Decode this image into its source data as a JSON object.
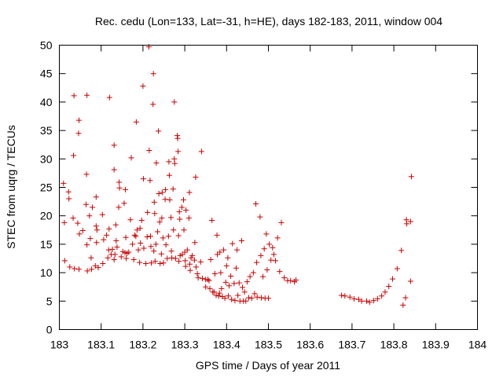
{
  "chart_data": {
    "type": "scatter",
    "title": "Rec. cedu (Lon=133, Lat=-31, h=HE), days 182-183, 2011, window 004",
    "xlabel": "GPS time / Days of year 2011",
    "ylabel": "STEC from uqrg / TECUs",
    "xlim": [
      183,
      184
    ],
    "ylim": [
      0,
      50
    ],
    "xticks": [
      183,
      183.1,
      183.2,
      183.3,
      183.4,
      183.5,
      183.6,
      183.7,
      183.8,
      183.9,
      184
    ],
    "xtick_labels": [
      "183",
      "183.1",
      "183.2",
      "183.3",
      "183.4",
      "183.5",
      "183.6",
      "183.7",
      "183.8",
      "183.9",
      "184"
    ],
    "yticks": [
      0,
      5,
      10,
      15,
      20,
      25,
      30,
      35,
      40,
      45,
      50
    ],
    "ytick_labels": [
      "0",
      "5",
      "10",
      "15",
      "20",
      "25",
      "30",
      "35",
      "40",
      "45",
      "50"
    ],
    "grid": false,
    "marker": "plus",
    "color": "#cc0000",
    "series": [
      {
        "points": [
          [
            183.01,
            25.7
          ],
          [
            183.012,
            18.8
          ],
          [
            183.013,
            12.1
          ],
          [
            183.022,
            24.2
          ],
          [
            183.023,
            23.0
          ],
          [
            183.025,
            11.0
          ],
          [
            183.033,
            19.6
          ],
          [
            183.034,
            30.6
          ],
          [
            183.035,
            41.1
          ],
          [
            183.036,
            10.7
          ],
          [
            183.044,
            18.7
          ],
          [
            183.046,
            34.5
          ],
          [
            183.047,
            36.8
          ],
          [
            183.047,
            10.6
          ],
          [
            183.048,
            16.8
          ],
          [
            183.056,
            17.4
          ],
          [
            183.064,
            22.0
          ],
          [
            183.065,
            27.3
          ],
          [
            183.066,
            41.2
          ],
          [
            183.066,
            14.9
          ],
          [
            183.067,
            10.3
          ],
          [
            183.072,
            20.0
          ],
          [
            183.074,
            16.0
          ],
          [
            183.076,
            12.6
          ],
          [
            183.077,
            10.6
          ],
          [
            183.079,
            21.5
          ],
          [
            183.086,
            11.2
          ],
          [
            183.088,
            18.2
          ],
          [
            183.088,
            23.3
          ],
          [
            183.089,
            15.3
          ],
          [
            183.09,
            17.5
          ],
          [
            183.093,
            10.9
          ],
          [
            183.103,
            20.2
          ],
          [
            183.104,
            11.6
          ],
          [
            183.106,
            15.8
          ],
          [
            183.113,
            16.6
          ],
          [
            183.116,
            12.6
          ],
          [
            183.118,
            14.0
          ],
          [
            183.119,
            17.7
          ],
          [
            183.12,
            40.8
          ],
          [
            183.124,
            13.2
          ],
          [
            183.127,
            14.1
          ],
          [
            183.131,
            32.4
          ],
          [
            183.131,
            28.1
          ],
          [
            183.131,
            12.3
          ],
          [
            183.133,
            13.2
          ],
          [
            183.135,
            18.4
          ],
          [
            183.136,
            15.6
          ],
          [
            183.138,
            14.5
          ],
          [
            183.142,
            21.5
          ],
          [
            183.143,
            25.9
          ],
          [
            183.144,
            24.9
          ],
          [
            183.148,
            12.8
          ],
          [
            183.152,
            13.7
          ],
          [
            183.155,
            22.2
          ],
          [
            183.157,
            13.5
          ],
          [
            183.158,
            24.6
          ],
          [
            183.159,
            16.2
          ],
          [
            183.16,
            12.5
          ],
          [
            183.162,
            13.4
          ],
          [
            183.166,
            13.6
          ],
          [
            183.17,
            19.3
          ],
          [
            183.172,
            30.2
          ],
          [
            183.175,
            15.0
          ],
          [
            183.178,
            12.3
          ],
          [
            183.18,
            16.6
          ],
          [
            183.183,
            16.4
          ],
          [
            183.184,
            36.5
          ],
          [
            183.186,
            17.5
          ],
          [
            183.189,
            14.0
          ],
          [
            183.192,
            11.8
          ],
          [
            183.193,
            17.8
          ],
          [
            183.194,
            15.2
          ],
          [
            183.197,
            19.2
          ],
          [
            183.2,
            42.8
          ],
          [
            183.201,
            26.5
          ],
          [
            183.202,
            14.3
          ],
          [
            183.207,
            11.6
          ],
          [
            183.21,
            16.3
          ],
          [
            183.211,
            20.6
          ],
          [
            183.214,
            49.7
          ],
          [
            183.215,
            31.5
          ],
          [
            183.217,
            26.2
          ],
          [
            183.218,
            16.4
          ],
          [
            183.219,
            14.6
          ],
          [
            183.22,
            11.7
          ],
          [
            183.224,
            39.6
          ],
          [
            183.225,
            45.0
          ],
          [
            183.226,
            13.8
          ],
          [
            183.227,
            22.4
          ],
          [
            183.228,
            20.4
          ],
          [
            183.229,
            12.0
          ],
          [
            183.231,
            15.0
          ],
          [
            183.232,
            29.3
          ],
          [
            183.235,
            17.2
          ],
          [
            183.237,
            34.9
          ],
          [
            183.238,
            23.9
          ],
          [
            183.24,
            18.9
          ],
          [
            183.241,
            11.6
          ],
          [
            183.244,
            13.3
          ],
          [
            183.245,
            19.6
          ],
          [
            183.246,
            24.1
          ],
          [
            183.248,
            16.1
          ],
          [
            183.249,
            11.7
          ],
          [
            183.253,
            22.9
          ],
          [
            183.254,
            24.6
          ],
          [
            183.255,
            14.9
          ],
          [
            183.258,
            12.5
          ],
          [
            183.261,
            16.4
          ],
          [
            183.262,
            29.5
          ],
          [
            183.263,
            27.1
          ],
          [
            183.264,
            22.8
          ],
          [
            183.267,
            19.7
          ],
          [
            183.268,
            13.8
          ],
          [
            183.269,
            12.6
          ],
          [
            183.272,
            24.7
          ],
          [
            183.273,
            17.5
          ],
          [
            183.275,
            40.0
          ],
          [
            183.275,
            30.0
          ],
          [
            183.276,
            29.2
          ],
          [
            183.278,
            12.5
          ],
          [
            183.282,
            34.1
          ],
          [
            183.283,
            33.6
          ],
          [
            183.284,
            31.3
          ],
          [
            183.285,
            16.5
          ],
          [
            183.286,
            12.0
          ],
          [
            183.287,
            20.7
          ],
          [
            183.288,
            19.4
          ],
          [
            183.289,
            13.0
          ],
          [
            183.293,
            21.5
          ],
          [
            183.294,
            13.2
          ],
          [
            183.297,
            22.8
          ],
          [
            183.298,
            17.5
          ],
          [
            183.3,
            13.6
          ],
          [
            183.301,
            12.1
          ],
          [
            183.302,
            11.1
          ],
          [
            183.303,
            21.0
          ],
          [
            183.306,
            14.0
          ],
          [
            183.31,
            19.6
          ],
          [
            183.311,
            24.1
          ],
          [
            183.312,
            11.5
          ],
          [
            183.313,
            10.4
          ],
          [
            183.315,
            12.6
          ],
          [
            183.318,
            13.0
          ],
          [
            183.323,
            12.2
          ],
          [
            183.324,
            15.3
          ],
          [
            183.326,
            26.8
          ],
          [
            183.327,
            11.0
          ],
          [
            183.33,
            9.8
          ],
          [
            183.332,
            9.1
          ],
          [
            183.338,
            11.9
          ],
          [
            183.34,
            31.3
          ],
          [
            183.342,
            9.0
          ],
          [
            183.35,
            8.8
          ],
          [
            183.35,
            7.5
          ],
          [
            183.355,
            8.8
          ],
          [
            183.358,
            8.6
          ],
          [
            183.36,
            7.2
          ],
          [
            183.362,
            12.3
          ],
          [
            183.365,
            19.2
          ],
          [
            183.367,
            6.6
          ],
          [
            183.37,
            6.6
          ],
          [
            183.372,
            9.8
          ],
          [
            183.375,
            6.0
          ],
          [
            183.377,
            16.6
          ],
          [
            183.378,
            13.2
          ],
          [
            183.381,
            5.9
          ],
          [
            183.383,
            6.4
          ],
          [
            183.384,
            13.6
          ],
          [
            183.386,
            10.0
          ],
          [
            183.388,
            7.2
          ],
          [
            183.39,
            5.8
          ],
          [
            183.393,
            14.0
          ],
          [
            183.396,
            5.5
          ],
          [
            183.398,
            8.3
          ],
          [
            183.4,
            11.2
          ],
          [
            183.403,
            12.6
          ],
          [
            183.404,
            5.9
          ],
          [
            183.406,
            7.7
          ],
          [
            183.41,
            9.4
          ],
          [
            183.412,
            5.3
          ],
          [
            183.414,
            15.1
          ],
          [
            183.418,
            8.1
          ],
          [
            183.42,
            5.1
          ],
          [
            183.423,
            10.8
          ],
          [
            183.425,
            14.0
          ],
          [
            183.427,
            6.0
          ],
          [
            183.43,
            8.2
          ],
          [
            183.432,
            5.0
          ],
          [
            183.436,
            15.6
          ],
          [
            183.438,
            7.4
          ],
          [
            183.44,
            5.0
          ],
          [
            183.443,
            6.6
          ],
          [
            183.446,
            5.0
          ],
          [
            183.449,
            8.4
          ],
          [
            183.453,
            5.6
          ],
          [
            183.456,
            9.3
          ],
          [
            183.46,
            5.5
          ],
          [
            183.464,
            10.0
          ],
          [
            183.467,
            6.3
          ],
          [
            183.47,
            22.1
          ],
          [
            183.472,
            11.8
          ],
          [
            183.473,
            5.7
          ],
          [
            183.48,
            19.8
          ],
          [
            183.482,
            13.0
          ],
          [
            183.483,
            5.6
          ],
          [
            183.487,
            9.3
          ],
          [
            183.49,
            14.2
          ],
          [
            183.492,
            5.5
          ],
          [
            183.495,
            16.8
          ],
          [
            183.497,
            10.5
          ],
          [
            183.5,
            5.5
          ],
          [
            183.502,
            15.0
          ],
          [
            183.506,
            12.2
          ],
          [
            183.51,
            14.4
          ],
          [
            183.513,
            13.2
          ],
          [
            183.517,
            12.1
          ],
          [
            183.522,
            16.1
          ],
          [
            183.527,
            10.2
          ],
          [
            183.531,
            18.8
          ],
          [
            183.538,
            9.1
          ],
          [
            183.546,
            8.6
          ],
          [
            183.553,
            8.6
          ],
          [
            183.562,
            8.4
          ],
          [
            183.566,
            8.7
          ],
          [
            183.675,
            6.0
          ],
          [
            183.683,
            5.9
          ],
          [
            183.695,
            5.7
          ],
          [
            183.705,
            5.4
          ],
          [
            183.716,
            5.3
          ],
          [
            183.723,
            5.0
          ],
          [
            183.735,
            5.0
          ],
          [
            183.742,
            4.8
          ],
          [
            183.752,
            5.1
          ],
          [
            183.761,
            5.4
          ],
          [
            183.771,
            5.9
          ],
          [
            183.779,
            6.6
          ],
          [
            183.788,
            7.6
          ],
          [
            183.797,
            8.9
          ],
          [
            183.808,
            10.7
          ],
          [
            183.818,
            13.9
          ],
          [
            183.822,
            4.3
          ],
          [
            183.828,
            5.6
          ],
          [
            183.83,
            19.3
          ],
          [
            183.831,
            18.6
          ],
          [
            183.84,
            19.0
          ],
          [
            183.84,
            8.5
          ],
          [
            183.842,
            26.9
          ]
        ]
      }
    ]
  }
}
